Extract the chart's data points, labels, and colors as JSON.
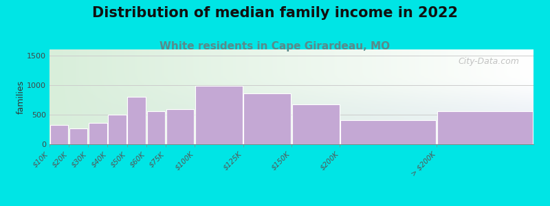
{
  "title": "Distribution of median family income in 2022",
  "subtitle": "White residents in Cape Girardeau, MO",
  "categories": [
    "$10K",
    "$20K",
    "$30K",
    "$40K",
    "$50K",
    "$60K",
    "$75K",
    "$100K",
    "$125K",
    "$150K",
    "$200K",
    "> $200K"
  ],
  "values": [
    320,
    270,
    360,
    500,
    800,
    560,
    590,
    980,
    860,
    670,
    410,
    560
  ],
  "bin_edges": [
    0,
    10,
    20,
    30,
    40,
    50,
    60,
    75,
    100,
    125,
    150,
    200,
    250
  ],
  "bar_color": "#c4a8d4",
  "bar_edgecolor": "#ffffff",
  "background_color": "#00e5e5",
  "plot_bg_left": "#d8eeda",
  "plot_bg_right": "#eef2f8",
  "ylabel": "families",
  "ylim": [
    0,
    1600
  ],
  "yticks": [
    0,
    500,
    1000,
    1500
  ],
  "title_fontsize": 15,
  "subtitle_fontsize": 11,
  "subtitle_color": "#5a8a8a",
  "watermark": "City-Data.com",
  "grid_color": "#cccccc",
  "tick_label_color": "#555555"
}
